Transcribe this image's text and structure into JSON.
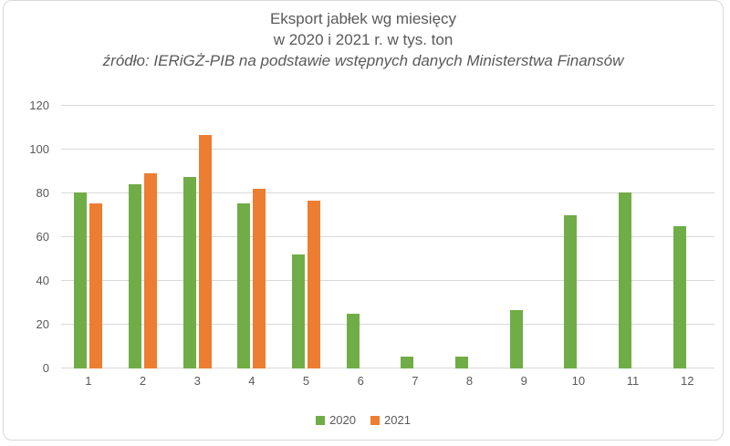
{
  "title": {
    "line1": "Eksport jabłek wg miesięcy",
    "line2": "w 2020 i 2021 r. w tys. ton",
    "source": "źródło: IERiGŻ-PIB na podstawie wstępnych danych Ministerstwa Finansów"
  },
  "chart_data": {
    "type": "bar",
    "title": "Eksport jabłek wg miesięcy w 2020 i 2021 r. w tys. ton",
    "subtitle": "źródło: IERiGŻ-PIB na podstawie wstępnych danych Ministerstwa Finansów",
    "categories": [
      "1",
      "2",
      "3",
      "4",
      "5",
      "6",
      "7",
      "8",
      "9",
      "10",
      "11",
      "12"
    ],
    "series": [
      {
        "name": "2020",
        "color": "#70AD47",
        "values": [
          80.5,
          84,
          87.5,
          75.5,
          52,
          25,
          5.5,
          5.5,
          26.5,
          70,
          80.5,
          65
        ]
      },
      {
        "name": "2021",
        "color": "#ED7D31",
        "values": [
          75.5,
          89,
          106.5,
          82,
          76.5,
          null,
          null,
          null,
          null,
          null,
          null,
          null
        ]
      }
    ],
    "xlabel": "",
    "ylabel": "",
    "ylim": [
      0,
      120
    ],
    "yticks": [
      0,
      20,
      40,
      60,
      80,
      100,
      120
    ],
    "grid": true,
    "legend_position": "bottom"
  },
  "colors": {
    "series_2020": "#70AD47",
    "series_2021": "#ED7D31",
    "gridline": "#D9D9D9",
    "frame_border": "#D9D9D9",
    "text": "#595959"
  }
}
